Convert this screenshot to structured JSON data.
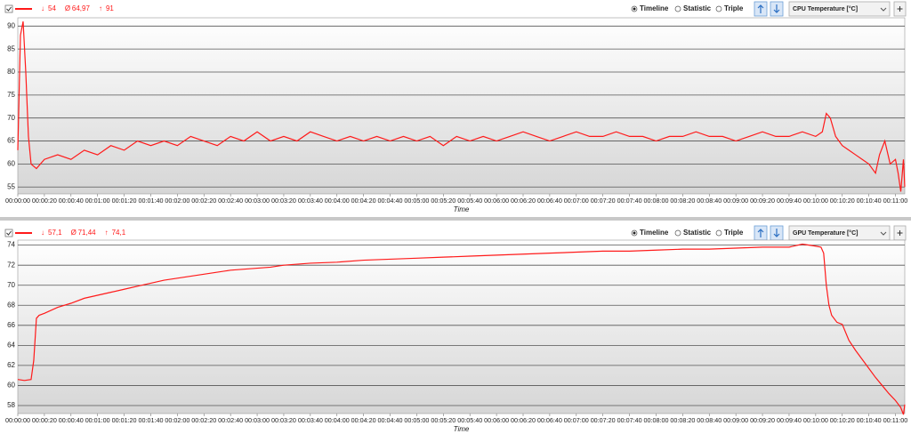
{
  "chart_data": [
    {
      "type": "line",
      "sensor": "CPU Temperature [°C]",
      "views": [
        "Timeline",
        "Statistic",
        "Triple"
      ],
      "selected_view": 0,
      "stats": [
        {
          "symbol": "↓",
          "value": 54
        },
        {
          "symbol": "Ø",
          "value": {
            "value": 64.97,
            "label": "64,97"
          }
        },
        {
          "symbol": "↑",
          "value": 91
        }
      ],
      "xlabel": "Time",
      "color": "#ff1a1a",
      "x": [
        0,
        2,
        4,
        6,
        8,
        10,
        14,
        20,
        30,
        40,
        50,
        60,
        70,
        80,
        90,
        100,
        110,
        120,
        130,
        140,
        150,
        160,
        170,
        180,
        190,
        200,
        210,
        220,
        230,
        240,
        250,
        260,
        270,
        280,
        290,
        300,
        310,
        320,
        330,
        340,
        350,
        360,
        370,
        380,
        390,
        400,
        410,
        420,
        430,
        440,
        450,
        460,
        470,
        480,
        490,
        500,
        510,
        520,
        530,
        540,
        550,
        560,
        570,
        580,
        590,
        600,
        605,
        608,
        611,
        615,
        620,
        625,
        630,
        635,
        640,
        645,
        648,
        652,
        656,
        660,
        662,
        664,
        666,
        667
      ],
      "values": [
        63,
        88,
        91,
        80,
        66,
        60,
        59,
        61,
        62,
        61,
        63,
        62,
        64,
        63,
        65,
        64,
        65,
        64,
        66,
        65,
        64,
        66,
        65,
        67,
        65,
        66,
        65,
        67,
        66,
        65,
        66,
        65,
        66,
        65,
        66,
        65,
        66,
        64,
        66,
        65,
        66,
        65,
        66,
        67,
        66,
        65,
        66,
        67,
        66,
        66,
        67,
        66,
        66,
        65,
        66,
        66,
        67,
        66,
        66,
        65,
        66,
        67,
        66,
        66,
        67,
        66,
        67,
        71,
        70,
        66,
        64,
        63,
        62,
        61,
        60,
        58,
        62,
        65,
        60,
        61,
        58,
        54,
        61,
        55
      ],
      "xlim": [
        0,
        667
      ],
      "ylim": [
        53.5,
        91.8
      ],
      "yticks": [
        55,
        60,
        65,
        70,
        75,
        80,
        85,
        90
      ],
      "grid": true,
      "xticks": [
        {
          "value": 0,
          "label": "00:00:00"
        },
        {
          "value": 20,
          "label": "00:00:20"
        },
        {
          "value": 40,
          "label": "00:00:40"
        },
        {
          "value": 60,
          "label": "00:01:00"
        },
        {
          "value": 80,
          "label": "00:01:20"
        },
        {
          "value": 100,
          "label": "00:01:40"
        },
        {
          "value": 120,
          "label": "00:02:00"
        },
        {
          "value": 140,
          "label": "00:02:20"
        },
        {
          "value": 160,
          "label": "00:02:40"
        },
        {
          "value": 180,
          "label": "00:03:00"
        },
        {
          "value": 200,
          "label": "00:03:20"
        },
        {
          "value": 220,
          "label": "00:03:40"
        },
        {
          "value": 240,
          "label": "00:04:00"
        },
        {
          "value": 260,
          "label": "00:04:20"
        },
        {
          "value": 280,
          "label": "00:04:40"
        },
        {
          "value": 300,
          "label": "00:05:00"
        },
        {
          "value": 320,
          "label": "00:05:20"
        },
        {
          "value": 340,
          "label": "00:05:40"
        },
        {
          "value": 360,
          "label": "00:06:00"
        },
        {
          "value": 380,
          "label": "00:06:20"
        },
        {
          "value": 400,
          "label": "00:06:40"
        },
        {
          "value": 420,
          "label": "00:07:00"
        },
        {
          "value": 440,
          "label": "00:07:20"
        },
        {
          "value": 460,
          "label": "00:07:40"
        },
        {
          "value": 480,
          "label": "00:08:00"
        },
        {
          "value": 500,
          "label": "00:08:20"
        },
        {
          "value": 520,
          "label": "00:08:40"
        },
        {
          "value": 540,
          "label": "00:09:00"
        },
        {
          "value": 560,
          "label": "00:09:20"
        },
        {
          "value": 580,
          "label": "00:09:40"
        },
        {
          "value": 600,
          "label": "00:10:00"
        },
        {
          "value": 620,
          "label": "00:10:20"
        },
        {
          "value": 640,
          "label": "00:10:40"
        },
        {
          "value": 660,
          "label": "00:11:00"
        }
      ]
    },
    {
      "type": "line",
      "sensor": "GPU Temperature [°C]",
      "views": [
        "Timeline",
        "Statistic",
        "Triple"
      ],
      "selected_view": 0,
      "stats": [
        {
          "symbol": "↓",
          "value": {
            "value": 57.1,
            "label": "57,1"
          }
        },
        {
          "symbol": "Ø",
          "value": {
            "value": 71.44,
            "label": "71,44"
          }
        },
        {
          "symbol": "↑",
          "value": {
            "value": 74.1,
            "label": "74,1"
          }
        }
      ],
      "xlabel": "Time",
      "color": "#ff1a1a",
      "x": [
        0,
        5,
        10,
        12,
        14,
        16,
        20,
        30,
        40,
        50,
        60,
        70,
        80,
        90,
        100,
        110,
        120,
        130,
        140,
        150,
        160,
        170,
        180,
        190,
        200,
        220,
        240,
        260,
        280,
        300,
        320,
        340,
        360,
        380,
        400,
        420,
        440,
        460,
        480,
        500,
        520,
        540,
        560,
        580,
        590,
        600,
        604,
        606,
        608,
        610,
        612,
        616,
        620,
        625,
        630,
        635,
        640,
        645,
        650,
        655,
        660,
        664,
        666,
        667
      ],
      "values": [
        60.6,
        60.5,
        60.6,
        62.5,
        66.7,
        67,
        67.2,
        67.8,
        68.2,
        68.7,
        69,
        69.3,
        69.6,
        69.9,
        70.2,
        70.5,
        70.7,
        70.9,
        71.1,
        71.3,
        71.5,
        71.6,
        71.7,
        71.8,
        72,
        72.2,
        72.3,
        72.5,
        72.6,
        72.7,
        72.8,
        72.9,
        73,
        73.1,
        73.2,
        73.3,
        73.4,
        73.4,
        73.5,
        73.6,
        73.6,
        73.7,
        73.8,
        73.8,
        74.1,
        73.9,
        73.8,
        73.2,
        70,
        68,
        67,
        66.3,
        66.1,
        64.5,
        63.5,
        62.6,
        61.7,
        60.8,
        60,
        59.2,
        58.5,
        57.8,
        57.1,
        58.1
      ],
      "xlim": [
        0,
        667
      ],
      "ylim": [
        57.2,
        74.5
      ],
      "yticks": [
        58,
        60,
        62,
        64,
        66,
        68,
        70,
        72,
        74
      ],
      "grid": true,
      "xticks": [
        {
          "value": 0,
          "label": "00:00:00"
        },
        {
          "value": 20,
          "label": "00:00:20"
        },
        {
          "value": 40,
          "label": "00:00:40"
        },
        {
          "value": 60,
          "label": "00:01:00"
        },
        {
          "value": 80,
          "label": "00:01:20"
        },
        {
          "value": 100,
          "label": "00:01:40"
        },
        {
          "value": 120,
          "label": "00:02:00"
        },
        {
          "value": 140,
          "label": "00:02:20"
        },
        {
          "value": 160,
          "label": "00:02:40"
        },
        {
          "value": 180,
          "label": "00:03:00"
        },
        {
          "value": 200,
          "label": "00:03:20"
        },
        {
          "value": 220,
          "label": "00:03:40"
        },
        {
          "value": 240,
          "label": "00:04:00"
        },
        {
          "value": 260,
          "label": "00:04:20"
        },
        {
          "value": 280,
          "label": "00:04:40"
        },
        {
          "value": 300,
          "label": "00:05:00"
        },
        {
          "value": 320,
          "label": "00:05:20"
        },
        {
          "value": 340,
          "label": "00:05:40"
        },
        {
          "value": 360,
          "label": "00:06:00"
        },
        {
          "value": 380,
          "label": "00:06:20"
        },
        {
          "value": 400,
          "label": "00:06:40"
        },
        {
          "value": 420,
          "label": "00:07:00"
        },
        {
          "value": 440,
          "label": "00:07:20"
        },
        {
          "value": 460,
          "label": "00:07:40"
        },
        {
          "value": 480,
          "label": "00:08:00"
        },
        {
          "value": 500,
          "label": "00:08:20"
        },
        {
          "value": 520,
          "label": "00:08:40"
        },
        {
          "value": 540,
          "label": "00:09:00"
        },
        {
          "value": 560,
          "label": "00:09:20"
        },
        {
          "value": 580,
          "label": "00:09:40"
        },
        {
          "value": 600,
          "label": "00:10:00"
        },
        {
          "value": 620,
          "label": "00:10:20"
        },
        {
          "value": 640,
          "label": "00:10:40"
        },
        {
          "value": 660,
          "label": "00:11:00"
        }
      ]
    }
  ]
}
